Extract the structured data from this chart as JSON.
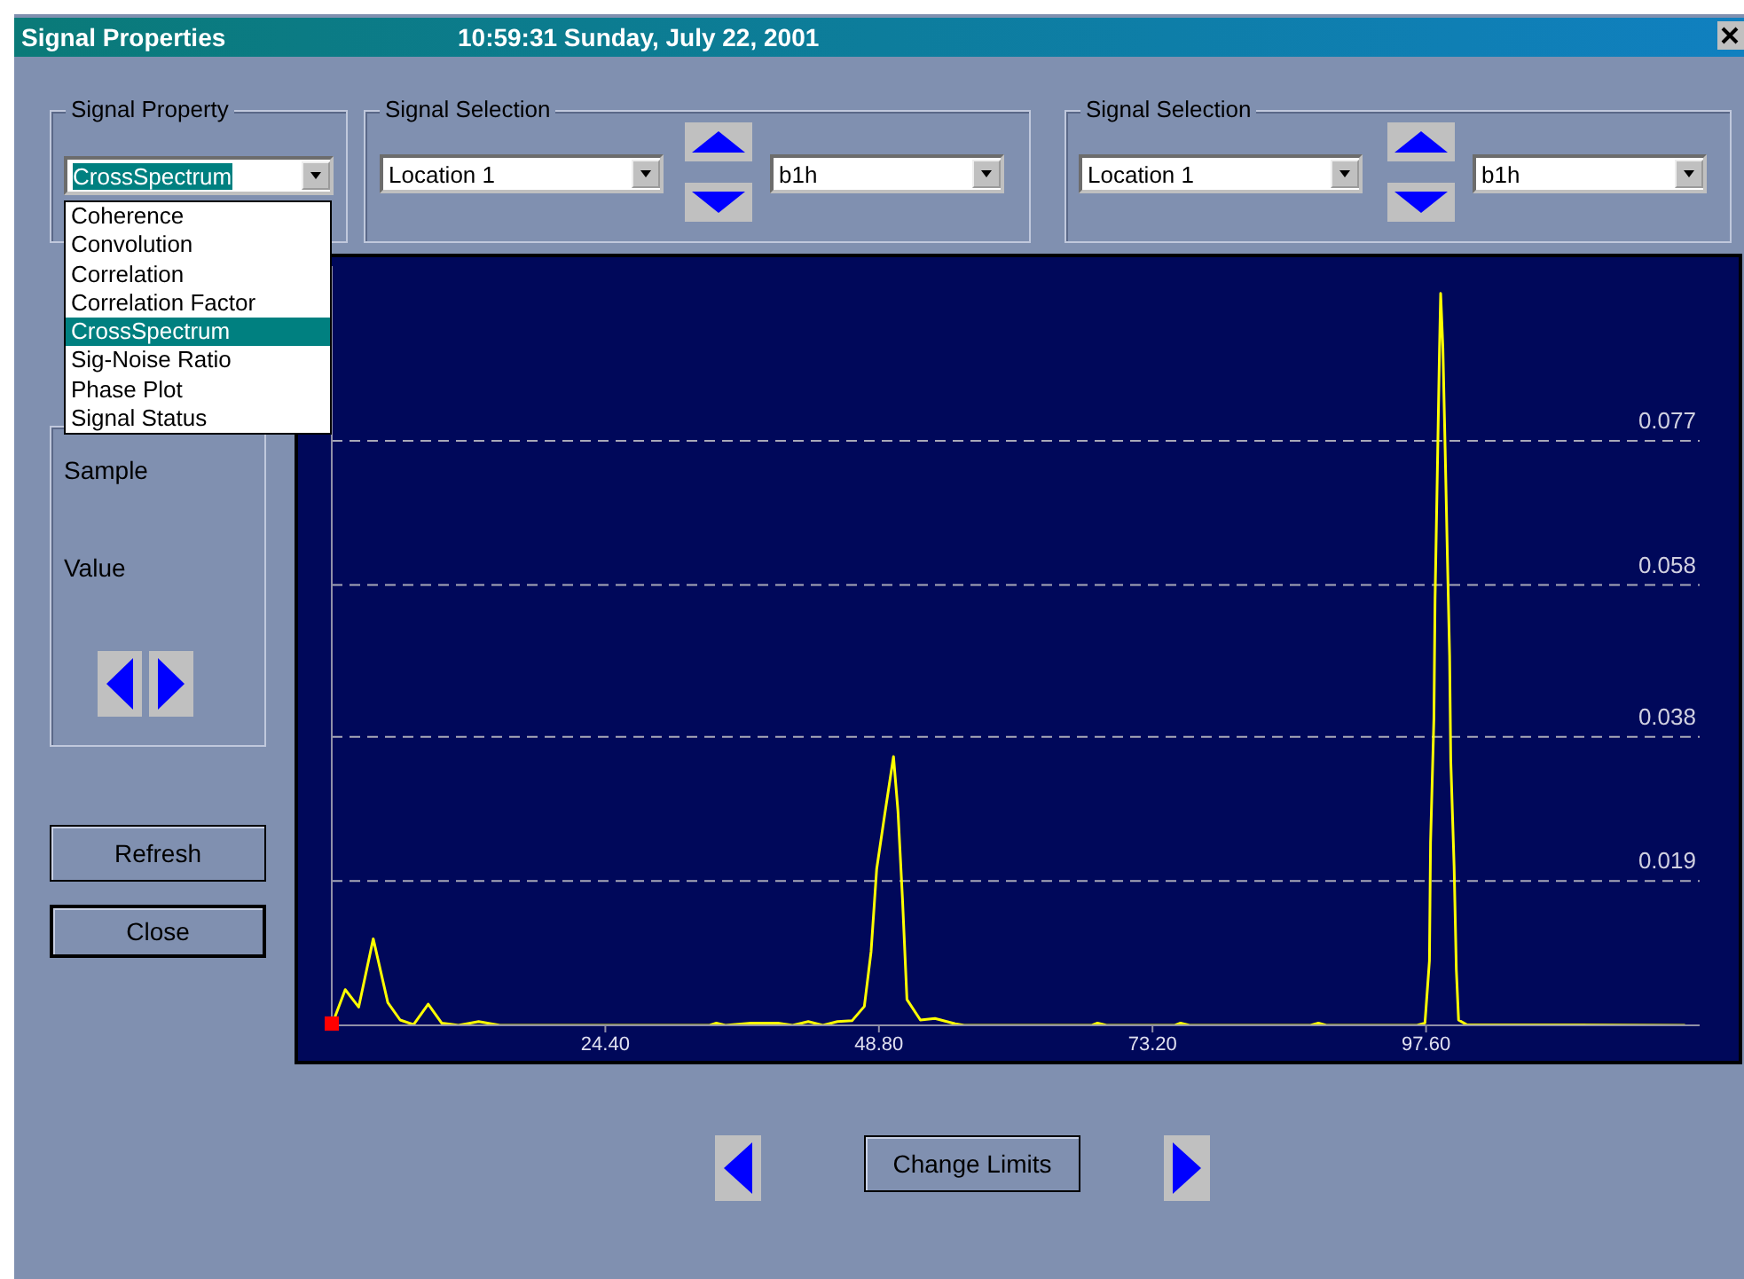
{
  "chart_data": {
    "type": "line",
    "title": "Signal Properties",
    "subtitle": "10:59:31 Sunday, July 22, 2001",
    "x": [
      0,
      1.2,
      2.4,
      3.7,
      5.0,
      6.1,
      7.3,
      8.6,
      9.8,
      11.3,
      13.1,
      15.0,
      33.7,
      34.3,
      35.1,
      37.4,
      39.8,
      41.1,
      42.5,
      43.8,
      45.1,
      46.4,
      47.5,
      48.1,
      48.6,
      49.3,
      50.1,
      50.5,
      50.9,
      51.3,
      52.5,
      53.8,
      55.6,
      56.4,
      67.8,
      68.3,
      69.1,
      75.2,
      75.7,
      76.5,
      87.3,
      88.0,
      88.7,
      96.8,
      97.5,
      97.9,
      98.0,
      98.3,
      98.4,
      98.6,
      98.8,
      98.9,
      99.1,
      99.3,
      99.5,
      99.7,
      99.8,
      100.1,
      100.3,
      100.5,
      101.2,
      120.7
    ],
    "series": [
      {
        "color": "#ffff00",
        "values": [
          0,
          0.0047,
          0.0024,
          0.0114,
          0.003,
          0.0007,
          0.0001,
          0.0028,
          0.0003,
          0,
          0.0005,
          0,
          0,
          0.0003,
          0,
          0.0003,
          0.0003,
          0,
          0.0005,
          0,
          0.0005,
          0.0006,
          0.0025,
          0.0097,
          0.0206,
          0.0276,
          0.0354,
          0.0282,
          0.0167,
          0.0034,
          0.0007,
          0.0009,
          0.0002,
          0,
          0,
          0.0003,
          0,
          0,
          0.0003,
          0,
          0,
          0.0003,
          0,
          0,
          0.0003,
          0.0085,
          0.0241,
          0.0405,
          0.0561,
          0.0724,
          0.0892,
          0.0964,
          0.0892,
          0.076,
          0.0619,
          0.0487,
          0.035,
          0.021,
          0.0073,
          0.0007,
          0.0001,
          0
        ]
      }
    ],
    "xlim": [
      0,
      122
    ],
    "xticks": [
      {
        "value": 24.4,
        "label": "24.40"
      },
      {
        "value": 48.8,
        "label": "48.80"
      },
      {
        "value": 73.2,
        "label": "73.20"
      },
      {
        "value": 97.6,
        "label": "97.60"
      }
    ],
    "ylim": [
      0,
      0.1
    ],
    "yticks": [
      0.019,
      0.038,
      0.058,
      0.077
    ],
    "grid": "y",
    "annotations": [
      "Signal Property",
      "CrossSpectrum",
      "Coherence",
      "Convolution",
      "Correlation",
      "Correlation Factor",
      "CrossSpectrum",
      "Sig-Noise Ratio",
      "Phase Plot",
      "Signal Status",
      "Signal Selection",
      "Location 1",
      "b1h",
      "Signal Selection",
      "Location 1",
      "b1h",
      "Sample",
      "Value",
      "Refresh",
      "Close",
      "Change Limits"
    ]
  }
}
